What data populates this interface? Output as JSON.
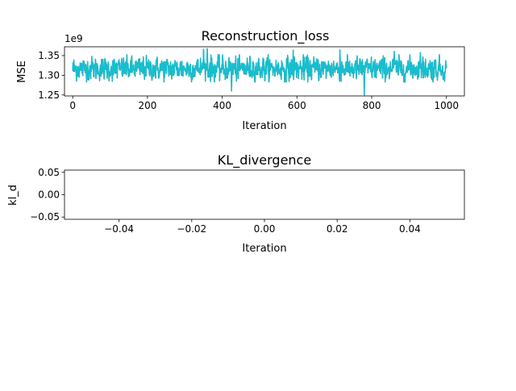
{
  "chart_data": [
    {
      "type": "line",
      "title": "Reconstruction_loss",
      "xlabel": "Iteration",
      "ylabel": "MSE",
      "offset_text": "1e9",
      "xlim": [
        -22,
        1048
      ],
      "ylim": [
        1.2475,
        1.3725
      ],
      "xticks": [
        0,
        200,
        400,
        600,
        800,
        1000
      ],
      "xtick_labels": [
        "0",
        "200",
        "400",
        "600",
        "800",
        "1000"
      ],
      "yticks": [
        1.25,
        1.3,
        1.35
      ],
      "ytick_labels": [
        "1.25",
        "1.30",
        "1.35"
      ],
      "grid": false,
      "series": [
        {
          "color": "#17becf",
          "x_start": 0,
          "x_end": 1000,
          "points": 1001,
          "mean": 1.318,
          "std": 0.015,
          "min": 1.252,
          "max": 1.368,
          "notable": [
            {
              "x": 350,
              "y": 1.366
            },
            {
              "x": 360,
              "y": 1.368
            },
            {
              "x": 425,
              "y": 1.262
            },
            {
              "x": 590,
              "y": 1.364
            },
            {
              "x": 715,
              "y": 1.365
            },
            {
              "x": 780,
              "y": 1.252
            },
            {
              "x": 860,
              "y": 1.361
            },
            {
              "x": 930,
              "y": 1.358
            }
          ]
        }
      ]
    },
    {
      "type": "line",
      "title": "KL_divergence",
      "xlabel": "Iteration",
      "ylabel": "kl_d",
      "xlim": [
        -0.055,
        0.055
      ],
      "ylim": [
        -0.055,
        0.055
      ],
      "xticks": [
        -0.04,
        -0.02,
        0.0,
        0.02,
        0.04
      ],
      "xtick_labels": [
        "−0.04",
        "−0.02",
        "0.00",
        "0.02",
        "0.04"
      ],
      "yticks": [
        -0.05,
        0.0,
        0.05
      ],
      "ytick_labels": [
        "−0.05",
        "0.00",
        "0.05"
      ],
      "grid": false,
      "series": []
    }
  ]
}
